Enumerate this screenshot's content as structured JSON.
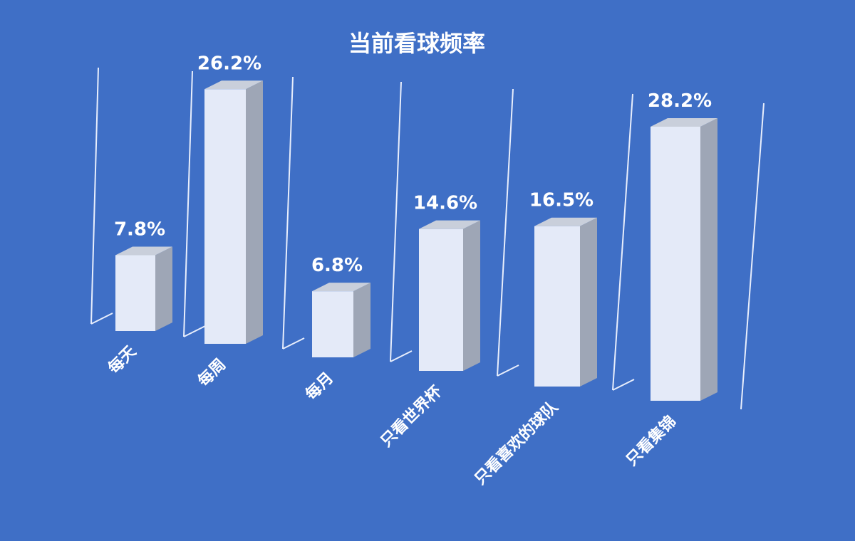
{
  "chart_data": {
    "type": "bar3d",
    "title": "当前看球频率",
    "categories": [
      "每天",
      "每周",
      "每月",
      "只看世界杯",
      "只看喜欢的球队",
      "只看集锦"
    ],
    "values": [
      7.8,
      26.2,
      6.8,
      14.6,
      16.5,
      28.2
    ],
    "value_labels": [
      "7.8%",
      "26.2%",
      "6.8%",
      "14.6%",
      "16.5%",
      "28.2%"
    ],
    "color": "#e4eaf8"
  }
}
